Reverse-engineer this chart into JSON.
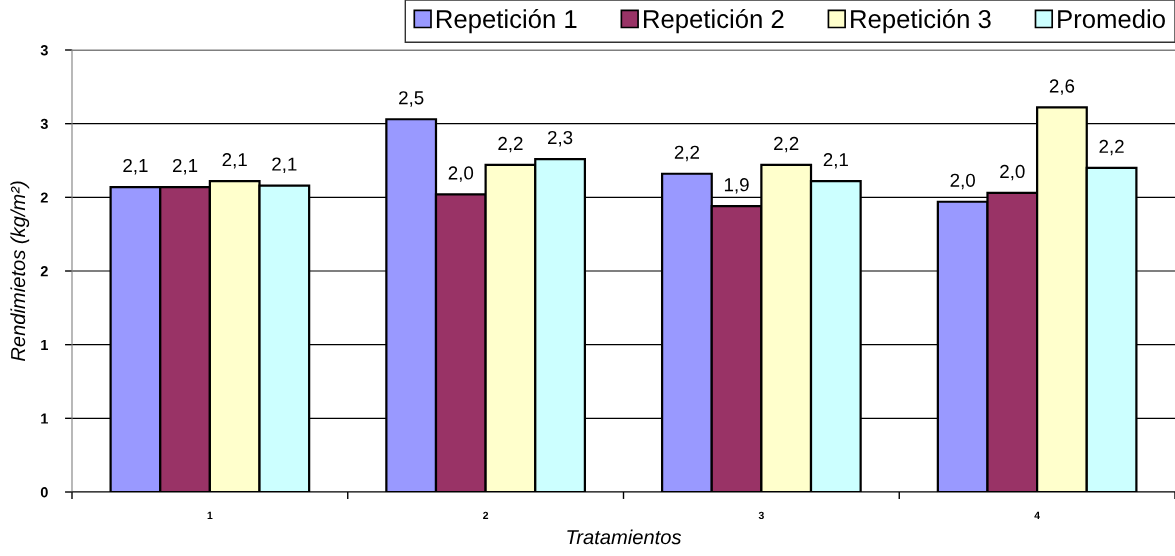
{
  "chart_data": {
    "type": "bar",
    "xlabel": "Tratamientos",
    "ylabel": "Rendimietos (kg/m²)",
    "categories": [
      "1",
      "2",
      "3",
      "4"
    ],
    "series": [
      {
        "name": "Repetición 1",
        "color": "#9999ff",
        "values": [
          2.07,
          2.53,
          2.16,
          1.97
        ],
        "value_labels": [
          "2,1",
          "2,5",
          "2,2",
          "2,0"
        ]
      },
      {
        "name": "Repetición 2",
        "color": "#993366",
        "values": [
          2.07,
          2.02,
          1.94,
          2.03
        ],
        "value_labels": [
          "2,1",
          "2,0",
          "1,9",
          "2,0"
        ]
      },
      {
        "name": "Repetición 3",
        "color": "#ffffcc",
        "values": [
          2.11,
          2.22,
          2.22,
          2.61
        ],
        "value_labels": [
          "2,1",
          "2,2",
          "2,2",
          "2,6"
        ]
      },
      {
        "name": "Promedio",
        "color": "#ccffff",
        "values": [
          2.08,
          2.26,
          2.11,
          2.2
        ],
        "value_labels": [
          "2,1",
          "2,3",
          "2,1",
          "2,2"
        ]
      }
    ],
    "ylim": [
      0,
      3
    ],
    "yticks": [
      0,
      {
        "value": 0.5,
        "label": "1"
      },
      1,
      {
        "value": 1.5,
        "label": "2"
      },
      2,
      {
        "value": 2.5,
        "label": "3"
      },
      3
    ],
    "grid": "y",
    "legend": "top right"
  }
}
